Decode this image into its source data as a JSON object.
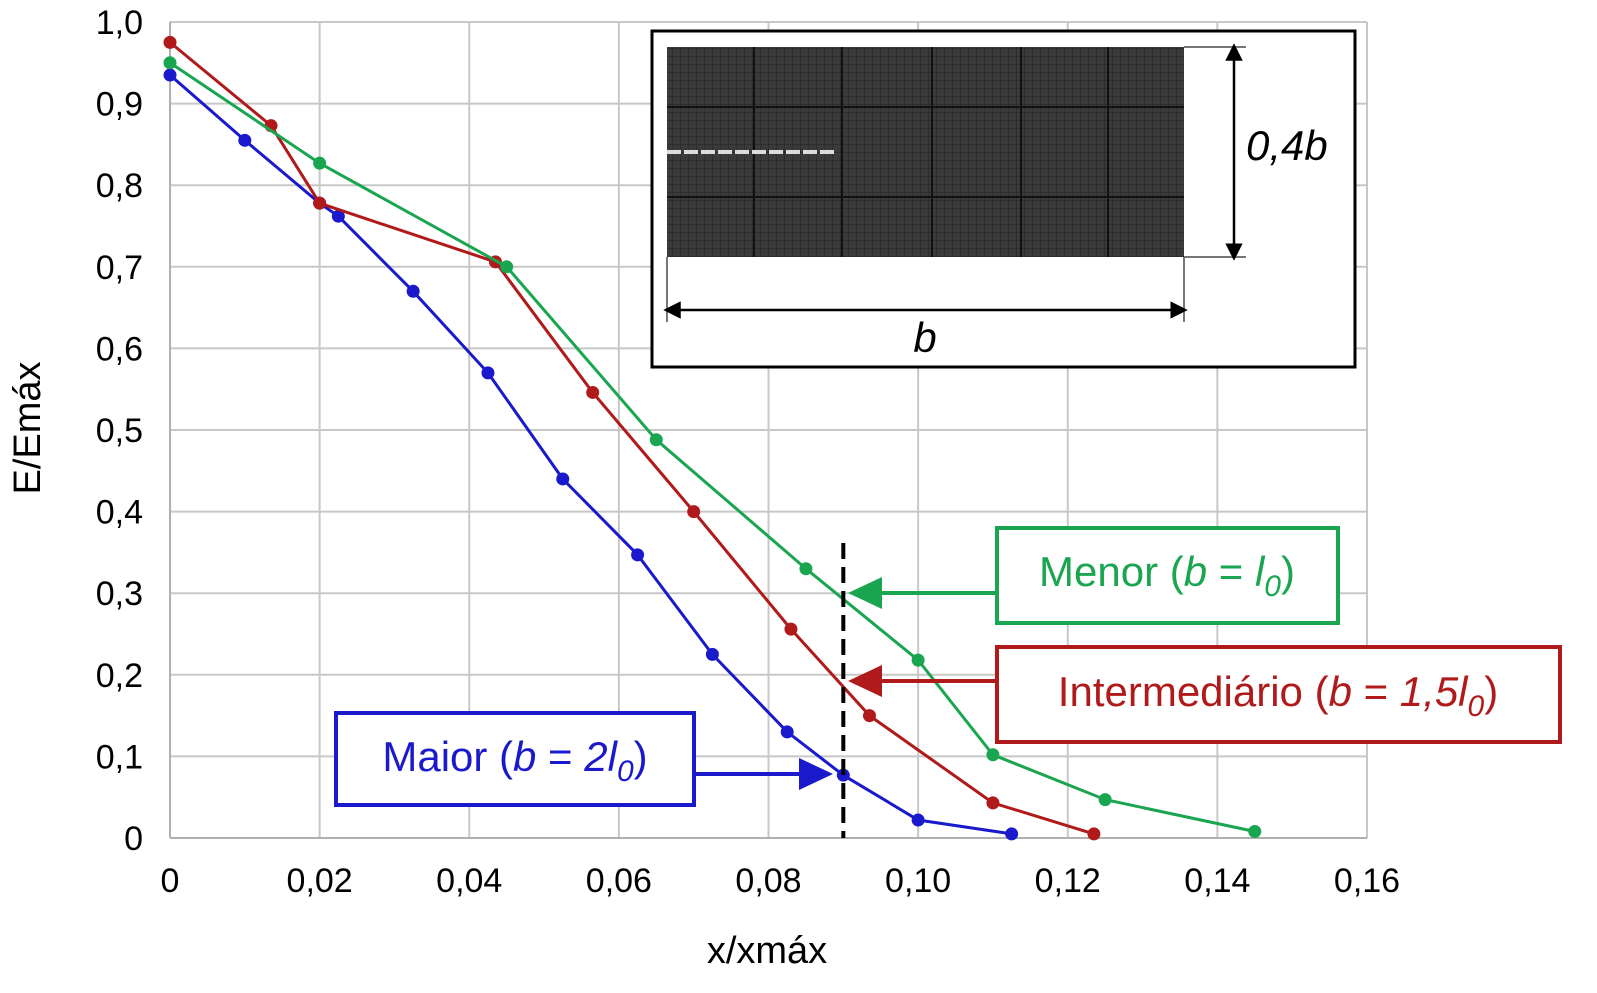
{
  "chart_data": {
    "type": "line",
    "title": "",
    "xlabel": "x/xmáx",
    "ylabel": "E/Emáx",
    "xlim": [
      0,
      0.16
    ],
    "ylim": [
      0,
      1.0
    ],
    "x_ticks": [
      "0",
      "0,02",
      "0,04",
      "0,06",
      "0,08",
      "0,10",
      "0,12",
      "0,14",
      "0,16"
    ],
    "y_ticks": [
      "0",
      "0,1",
      "0,2",
      "0,3",
      "0,4",
      "0,5",
      "0,6",
      "0,7",
      "0,8",
      "0,9",
      "1,0"
    ],
    "grid": true,
    "reference_line": {
      "x": 0.09,
      "style": "dashed",
      "color": "#000000"
    },
    "series": [
      {
        "color": "#1a1acc",
        "label_parts": [
          "Maior (",
          "b",
          " = ",
          "2l",
          "0",
          ")"
        ],
        "points": [
          [
            0,
            0.935
          ],
          [
            0.01,
            0.855
          ],
          [
            0.02,
            0.778
          ],
          [
            0.0225,
            0.762
          ],
          [
            0.0325,
            0.67
          ],
          [
            0.0425,
            0.57
          ],
          [
            0.0525,
            0.44
          ],
          [
            0.0625,
            0.347
          ],
          [
            0.0725,
            0.225
          ],
          [
            0.0825,
            0.13
          ],
          [
            0.09,
            0.077
          ],
          [
            0.1,
            0.022
          ],
          [
            0.1125,
            0.005
          ]
        ]
      },
      {
        "color": "#b01a1a",
        "label_parts": [
          "Intermediário (",
          "b",
          " = ",
          "1,5l",
          "0",
          ")"
        ],
        "points": [
          [
            0,
            0.975
          ],
          [
            0.0135,
            0.873
          ],
          [
            0.02,
            0.778
          ],
          [
            0.0435,
            0.706
          ],
          [
            0.0565,
            0.546
          ],
          [
            0.07,
            0.4
          ],
          [
            0.083,
            0.256
          ],
          [
            0.0935,
            0.15
          ],
          [
            0.11,
            0.043
          ],
          [
            0.1235,
            0.005
          ]
        ]
      },
      {
        "color": "#1aa550",
        "label_parts": [
          "Menor (",
          "b",
          " = ",
          "l",
          "0",
          ")"
        ],
        "points": [
          [
            0,
            0.95
          ],
          [
            0.02,
            0.827
          ],
          [
            0.045,
            0.7
          ],
          [
            0.065,
            0.488
          ],
          [
            0.085,
            0.33
          ],
          [
            0.1,
            0.218
          ],
          [
            0.11,
            0.102
          ],
          [
            0.125,
            0.047
          ],
          [
            0.145,
            0.008
          ]
        ]
      }
    ],
    "inset": {
      "height_label": "0,4b",
      "width_label": "b"
    }
  }
}
